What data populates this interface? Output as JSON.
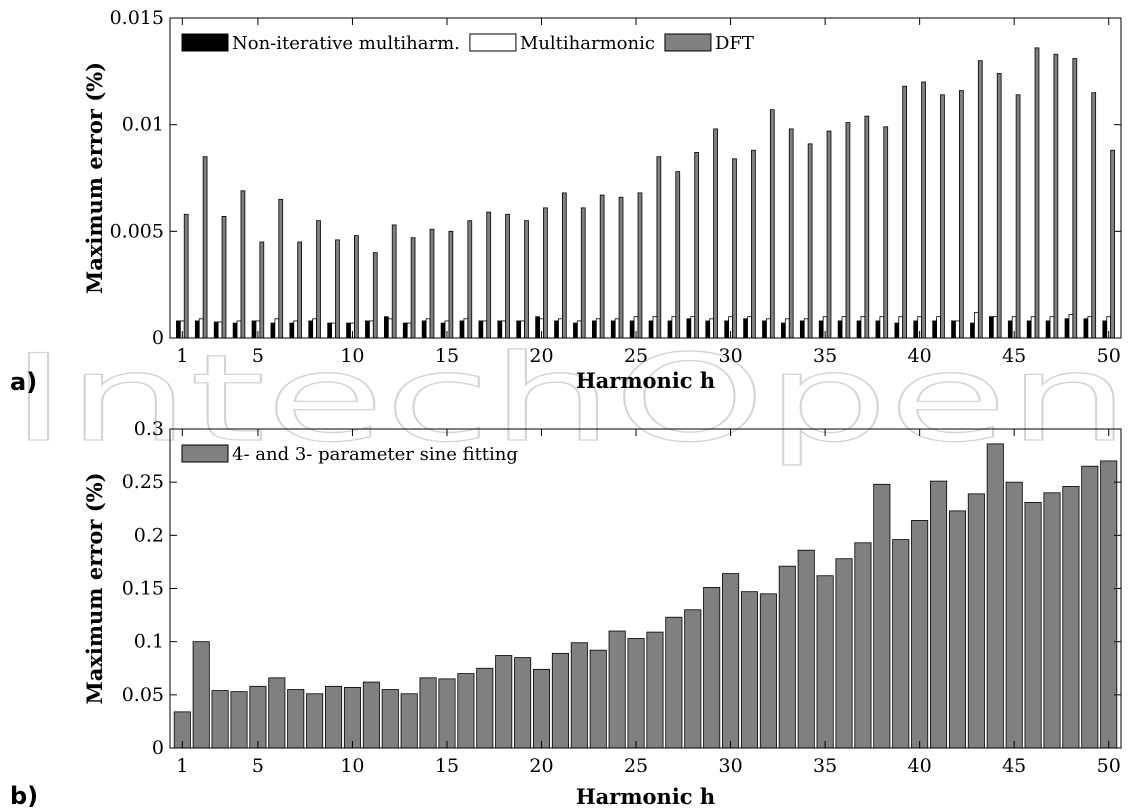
{
  "watermark": "IntechOpen",
  "colors": {
    "non_iterative": "#000000",
    "multiharmonic": "#ffffff",
    "dft": "#808080",
    "sine_fitting": "#808080",
    "axis": "#000000"
  },
  "chart_data": [
    {
      "panel_label": "a)",
      "type": "bar",
      "grouped": true,
      "xlabel": "Harmonic h",
      "ylabel": "Maximum error (%)",
      "ylim": [
        0,
        0.015
      ],
      "yticks": [
        0,
        0.005,
        0.01,
        0.015
      ],
      "ytick_labels": [
        "0",
        "0.005",
        "0.01",
        "0.015"
      ],
      "xticks": [
        1,
        5,
        10,
        15,
        20,
        25,
        30,
        35,
        40,
        45,
        50
      ],
      "legend_position": "top-left",
      "x": [
        1,
        2,
        3,
        4,
        5,
        6,
        7,
        8,
        9,
        10,
        11,
        12,
        13,
        14,
        15,
        16,
        17,
        18,
        19,
        20,
        21,
        22,
        23,
        24,
        25,
        26,
        27,
        28,
        29,
        30,
        31,
        32,
        33,
        34,
        35,
        36,
        37,
        38,
        39,
        40,
        41,
        42,
        43,
        44,
        45,
        46,
        47,
        48,
        49,
        50
      ],
      "series": [
        {
          "name": "Non-iterative multiharm.",
          "color": "#000000",
          "values": [
            0.0008,
            0.0008,
            0.00075,
            0.0007,
            0.0008,
            0.0007,
            0.0007,
            0.0008,
            0.0007,
            0.0007,
            0.0008,
            0.001,
            0.0007,
            0.0008,
            0.0007,
            0.0008,
            0.0008,
            0.0008,
            0.0008,
            0.001,
            0.0008,
            0.0007,
            0.0008,
            0.0008,
            0.0008,
            0.0008,
            0.0008,
            0.0009,
            0.0008,
            0.0008,
            0.0009,
            0.0008,
            0.0007,
            0.0008,
            0.0008,
            0.0008,
            0.0008,
            0.0008,
            0.0007,
            0.0008,
            0.0008,
            0.0008,
            0.0007,
            0.001,
            0.0008,
            0.0008,
            0.0008,
            0.0009,
            0.0009,
            0.0008
          ]
        },
        {
          "name": "Multiharmonic",
          "color": "#ffffff",
          "values": [
            0.0008,
            0.0009,
            0.00075,
            0.0008,
            0.0008,
            0.0009,
            0.0008,
            0.0009,
            0.0007,
            0.0007,
            0.0008,
            0.0009,
            0.0007,
            0.0009,
            0.0008,
            0.0009,
            0.0008,
            0.0008,
            0.0008,
            0.0009,
            0.0009,
            0.0008,
            0.0009,
            0.0009,
            0.001,
            0.001,
            0.001,
            0.001,
            0.0009,
            0.001,
            0.001,
            0.0009,
            0.0009,
            0.0009,
            0.001,
            0.001,
            0.001,
            0.001,
            0.001,
            0.001,
            0.001,
            0.0008,
            0.0012,
            0.001,
            0.001,
            0.001,
            0.001,
            0.0011,
            0.001,
            0.001
          ]
        },
        {
          "name": "DFT",
          "color": "#808080",
          "values": [
            0.0058,
            0.0085,
            0.0057,
            0.0069,
            0.0045,
            0.0065,
            0.0045,
            0.0055,
            0.0046,
            0.0048,
            0.004,
            0.0053,
            0.0047,
            0.0051,
            0.005,
            0.0055,
            0.0059,
            0.0058,
            0.0055,
            0.0061,
            0.0068,
            0.0061,
            0.0067,
            0.0066,
            0.0068,
            0.0085,
            0.0078,
            0.0087,
            0.0098,
            0.0084,
            0.0088,
            0.0107,
            0.0098,
            0.0091,
            0.0097,
            0.0101,
            0.0104,
            0.0099,
            0.0118,
            0.012,
            0.0114,
            0.0116,
            0.013,
            0.0124,
            0.0114,
            0.0136,
            0.0133,
            0.0131,
            0.0115,
            0.0088
          ]
        }
      ]
    },
    {
      "panel_label": "b)",
      "type": "bar",
      "xlabel": "Harmonic h",
      "ylabel": "Maximum error (%)",
      "ylim": [
        0,
        0.3
      ],
      "yticks": [
        0,
        0.05,
        0.1,
        0.15,
        0.2,
        0.25,
        0.3
      ],
      "ytick_labels": [
        "0",
        "0.05",
        "0.1",
        "0.15",
        "0.2",
        "0.25",
        "0.3"
      ],
      "xticks": [
        1,
        5,
        10,
        15,
        20,
        25,
        30,
        35,
        40,
        45,
        50
      ],
      "legend_position": "top-left",
      "x": [
        1,
        2,
        3,
        4,
        5,
        6,
        7,
        8,
        9,
        10,
        11,
        12,
        13,
        14,
        15,
        16,
        17,
        18,
        19,
        20,
        21,
        22,
        23,
        24,
        25,
        26,
        27,
        28,
        29,
        30,
        31,
        32,
        33,
        34,
        35,
        36,
        37,
        38,
        39,
        40,
        41,
        42,
        43,
        44,
        45,
        46,
        47,
        48,
        49,
        50
      ],
      "series": [
        {
          "name": "4- and 3- parameter sine fitting",
          "color": "#808080",
          "values": [
            0.034,
            0.1,
            0.054,
            0.053,
            0.058,
            0.066,
            0.055,
            0.051,
            0.058,
            0.057,
            0.062,
            0.055,
            0.051,
            0.066,
            0.065,
            0.07,
            0.075,
            0.087,
            0.085,
            0.074,
            0.089,
            0.099,
            0.092,
            0.11,
            0.103,
            0.109,
            0.123,
            0.13,
            0.151,
            0.164,
            0.147,
            0.145,
            0.171,
            0.186,
            0.162,
            0.178,
            0.193,
            0.248,
            0.196,
            0.214,
            0.251,
            0.223,
            0.239,
            0.286,
            0.25,
            0.231,
            0.24,
            0.246,
            0.265,
            0.27
          ]
        }
      ]
    }
  ]
}
